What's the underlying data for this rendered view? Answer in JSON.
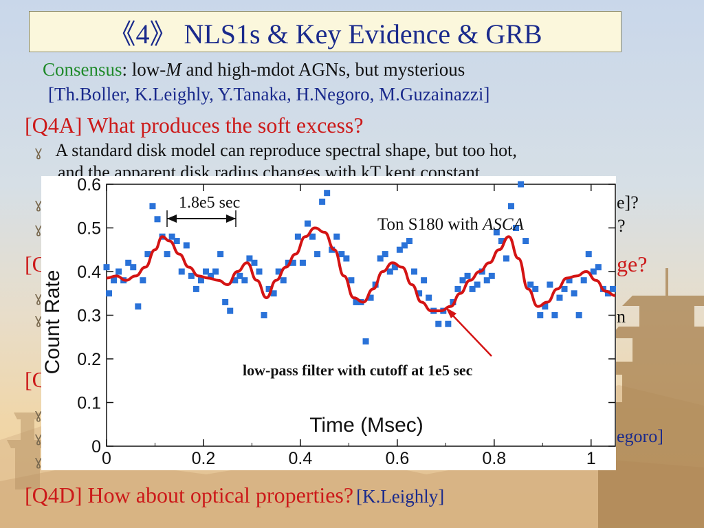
{
  "slide": {
    "title": "《4》 NLS1s & Key Evidence & GRB",
    "consensus_label": "Consensus",
    "consensus_colon": ":",
    "consensus_text_1": " low-",
    "consensus_M": "M",
    "consensus_text_2": "  and high-mdot AGNs, but mysterious",
    "refs": "[Th.Boller, K.Leighly, Y.Tanaka, H.Negoro, M.Guzainazzi]",
    "q4a": "[Q4A] What produces the soft excess?",
    "q4a_bullet1_line1": "A standard disk model can  reproduce spectral shape, but too hot,",
    "q4a_bullet1_line2": "and the apparent disk radius changes with kT kept constant.",
    "frag_right_1": "e]?",
    "frag_right_2": "?",
    "frag_q4b_left": "[Q",
    "frag_q4b_right": "ge?",
    "frag_right_3": "n",
    "frag_q4c_left": "[Q",
    "frag_right_4": "egoro]",
    "q4d": "[Q4D] How about optical properties?",
    "q4d_ref": "[K.Leighly]",
    "bullet_glyph": "ɣ"
  },
  "chart_data": {
    "type": "scatter",
    "title": "",
    "xlabel": "Time (Msec)",
    "ylabel": "Count Rate",
    "xlim": [
      0,
      1.05
    ],
    "ylim": [
      0,
      0.6
    ],
    "xticks": [
      "0",
      "0.2",
      "0.4",
      "0.6",
      "0.8",
      "1"
    ],
    "yticks": [
      "0",
      "0.1",
      "0.2",
      "0.3",
      "0.4",
      "0.5",
      "0.6"
    ],
    "annotation_time": "1.8e5 sec",
    "annotation_source_1": "Ton S180 with ",
    "annotation_source_2": "ASCA",
    "annotation_filter": "low-pass filter with cutoff at 1e5 sec",
    "colors": {
      "points": "#2a72d8",
      "curve": "#d41414",
      "arrow": "#d41414"
    },
    "series": [
      {
        "values": [
          [
            0.0,
            0.41
          ],
          [
            0.005,
            0.35
          ],
          [
            0.015,
            0.38
          ],
          [
            0.025,
            0.4
          ],
          [
            0.035,
            0.38
          ],
          [
            0.045,
            0.42
          ],
          [
            0.055,
            0.41
          ],
          [
            0.065,
            0.32
          ],
          [
            0.075,
            0.38
          ],
          [
            0.085,
            0.44
          ],
          [
            0.095,
            0.55
          ],
          [
            0.105,
            0.52
          ],
          [
            0.115,
            0.48
          ],
          [
            0.125,
            0.44
          ],
          [
            0.135,
            0.48
          ],
          [
            0.145,
            0.47
          ],
          [
            0.155,
            0.4
          ],
          [
            0.165,
            0.46
          ],
          [
            0.175,
            0.39
          ],
          [
            0.185,
            0.36
          ],
          [
            0.195,
            0.38
          ],
          [
            0.205,
            0.4
          ],
          [
            0.215,
            0.39
          ],
          [
            0.225,
            0.4
          ],
          [
            0.235,
            0.44
          ],
          [
            0.245,
            0.33
          ],
          [
            0.255,
            0.31
          ],
          [
            0.265,
            0.38
          ],
          [
            0.275,
            0.39
          ],
          [
            0.285,
            0.38
          ],
          [
            0.295,
            0.43
          ],
          [
            0.305,
            0.42
          ],
          [
            0.315,
            0.4
          ],
          [
            0.325,
            0.3
          ],
          [
            0.335,
            0.36
          ],
          [
            0.345,
            0.35
          ],
          [
            0.355,
            0.4
          ],
          [
            0.365,
            0.38
          ],
          [
            0.375,
            0.42
          ],
          [
            0.385,
            0.42
          ],
          [
            0.395,
            0.48
          ],
          [
            0.405,
            0.42
          ],
          [
            0.415,
            0.51
          ],
          [
            0.425,
            0.48
          ],
          [
            0.435,
            0.44
          ],
          [
            0.445,
            0.56
          ],
          [
            0.455,
            0.58
          ],
          [
            0.465,
            0.45
          ],
          [
            0.475,
            0.48
          ],
          [
            0.485,
            0.44
          ],
          [
            0.495,
            0.43
          ],
          [
            0.505,
            0.38
          ],
          [
            0.515,
            0.33
          ],
          [
            0.525,
            0.33
          ],
          [
            0.535,
            0.24
          ],
          [
            0.545,
            0.34
          ],
          [
            0.555,
            0.37
          ],
          [
            0.565,
            0.43
          ],
          [
            0.575,
            0.44
          ],
          [
            0.585,
            0.4
          ],
          [
            0.595,
            0.41
          ],
          [
            0.605,
            0.45
          ],
          [
            0.615,
            0.46
          ],
          [
            0.625,
            0.47
          ],
          [
            0.635,
            0.4
          ],
          [
            0.645,
            0.35
          ],
          [
            0.655,
            0.38
          ],
          [
            0.665,
            0.34
          ],
          [
            0.675,
            0.31
          ],
          [
            0.685,
            0.28
          ],
          [
            0.695,
            0.31
          ],
          [
            0.705,
            0.28
          ],
          [
            0.715,
            0.33
          ],
          [
            0.725,
            0.36
          ],
          [
            0.735,
            0.38
          ],
          [
            0.745,
            0.39
          ],
          [
            0.755,
            0.36
          ],
          [
            0.765,
            0.37
          ],
          [
            0.775,
            0.4
          ],
          [
            0.785,
            0.38
          ],
          [
            0.795,
            0.39
          ],
          [
            0.805,
            0.49
          ],
          [
            0.815,
            0.47
          ],
          [
            0.825,
            0.43
          ],
          [
            0.835,
            0.55
          ],
          [
            0.845,
            0.5
          ],
          [
            0.855,
            0.6
          ],
          [
            0.865,
            0.47
          ],
          [
            0.875,
            0.37
          ],
          [
            0.885,
            0.36
          ],
          [
            0.895,
            0.3
          ],
          [
            0.905,
            0.32
          ],
          [
            0.915,
            0.37
          ],
          [
            0.925,
            0.3
          ],
          [
            0.935,
            0.34
          ],
          [
            0.945,
            0.36
          ],
          [
            0.955,
            0.38
          ],
          [
            0.965,
            0.35
          ],
          [
            0.975,
            0.3
          ],
          [
            0.985,
            0.38
          ],
          [
            0.995,
            0.44
          ],
          [
            1.005,
            0.4
          ],
          [
            1.015,
            0.41
          ],
          [
            1.025,
            0.36
          ],
          [
            1.035,
            0.35
          ],
          [
            1.045,
            0.36
          ]
        ]
      },
      {
        "values": [
          [
            0.0,
            0.385
          ],
          [
            0.02,
            0.39
          ],
          [
            0.04,
            0.38
          ],
          [
            0.06,
            0.39
          ],
          [
            0.08,
            0.41
          ],
          [
            0.1,
            0.45
          ],
          [
            0.115,
            0.48
          ],
          [
            0.13,
            0.47
          ],
          [
            0.15,
            0.44
          ],
          [
            0.17,
            0.41
          ],
          [
            0.19,
            0.39
          ],
          [
            0.21,
            0.385
          ],
          [
            0.23,
            0.38
          ],
          [
            0.25,
            0.37
          ],
          [
            0.27,
            0.4
          ],
          [
            0.29,
            0.42
          ],
          [
            0.31,
            0.38
          ],
          [
            0.33,
            0.34
          ],
          [
            0.35,
            0.38
          ],
          [
            0.37,
            0.41
          ],
          [
            0.39,
            0.44
          ],
          [
            0.41,
            0.48
          ],
          [
            0.43,
            0.5
          ],
          [
            0.45,
            0.49
          ],
          [
            0.47,
            0.45
          ],
          [
            0.49,
            0.39
          ],
          [
            0.51,
            0.34
          ],
          [
            0.53,
            0.33
          ],
          [
            0.55,
            0.36
          ],
          [
            0.57,
            0.4
          ],
          [
            0.59,
            0.42
          ],
          [
            0.61,
            0.41
          ],
          [
            0.63,
            0.37
          ],
          [
            0.65,
            0.33
          ],
          [
            0.67,
            0.31
          ],
          [
            0.69,
            0.31
          ],
          [
            0.71,
            0.32
          ],
          [
            0.73,
            0.35
          ],
          [
            0.75,
            0.38
          ],
          [
            0.77,
            0.4
          ],
          [
            0.79,
            0.42
          ],
          [
            0.81,
            0.45
          ],
          [
            0.83,
            0.48
          ],
          [
            0.85,
            0.43
          ],
          [
            0.87,
            0.36
          ],
          [
            0.89,
            0.32
          ],
          [
            0.91,
            0.33
          ],
          [
            0.93,
            0.36
          ],
          [
            0.95,
            0.385
          ],
          [
            0.97,
            0.39
          ],
          [
            0.99,
            0.4
          ],
          [
            1.01,
            0.38
          ],
          [
            1.03,
            0.355
          ],
          [
            1.05,
            0.345
          ]
        ]
      }
    ]
  }
}
